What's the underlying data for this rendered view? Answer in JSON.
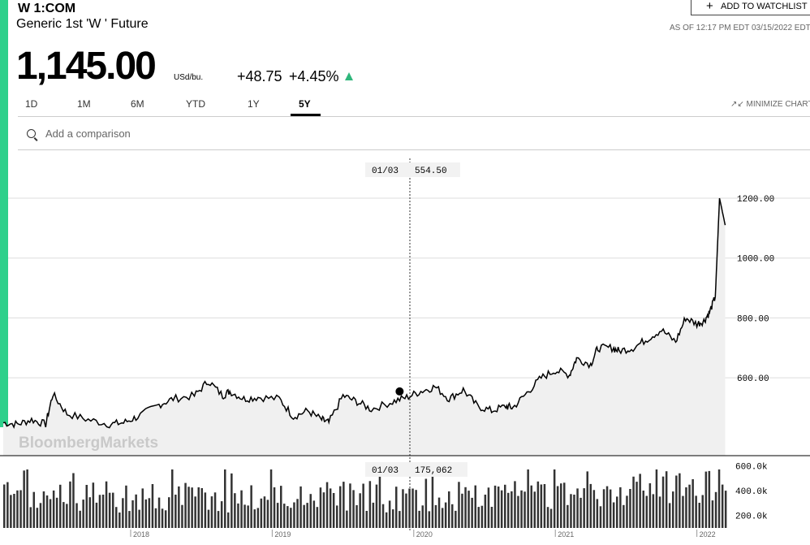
{
  "header": {
    "ticker": "W 1:COM",
    "name": "Generic 1st 'W ' Future",
    "price": "1,145.00",
    "unit": "USd/bu.",
    "change": "+48.75",
    "change_pct": "+4.45%",
    "direction_icon": "triangle-up-icon",
    "as_of": "AS OF 12:17 PM EDT 03/15/2022 EDT",
    "watchlist_label": "ADD TO WATCHLIST"
  },
  "tabs": [
    {
      "label": "1D"
    },
    {
      "label": "1M"
    },
    {
      "label": "6M"
    },
    {
      "label": "YTD"
    },
    {
      "label": "1Y"
    },
    {
      "label": "5Y",
      "active": true
    }
  ],
  "minimize_label": "MINIMIZE CHART",
  "search": {
    "placeholder": "Add a comparison"
  },
  "watermark": "BloombergMarkets",
  "colors": {
    "accent": "#2fd08b",
    "up": "#2fb67b",
    "area": "#f0f0f0",
    "line": "#000000"
  },
  "chart_data": {
    "type": "area",
    "title": "Generic 1st 'W ' Future — 5Y",
    "ylabel": "USd/bu.",
    "ylim": [
      340,
      1360
    ],
    "y_ticks": [
      600,
      800,
      1000,
      1200
    ],
    "y_tick_labels": [
      "600.00",
      "800.00",
      "1000.00",
      "1200.00"
    ],
    "x_labels": [
      "2018",
      "2019",
      "2020",
      "2021",
      "2022"
    ],
    "x_positions": [
      0.9,
      1.9,
      2.9,
      3.9,
      4.9
    ],
    "price_series": {
      "x": [
        0.0,
        0.1,
        0.2,
        0.3,
        0.35,
        0.45,
        0.6,
        0.75,
        0.85,
        0.95,
        1.1,
        1.2,
        1.35,
        1.45,
        1.55,
        1.6,
        1.7,
        1.8,
        1.95,
        2.05,
        2.15,
        2.25,
        2.3,
        2.4,
        2.5,
        2.6,
        2.75,
        2.85,
        2.95,
        3.05,
        3.15,
        3.25,
        3.35,
        3.45,
        3.55,
        3.6,
        3.7,
        3.8,
        3.9,
        4.0,
        4.05,
        4.15,
        4.2,
        4.3,
        4.35,
        4.45,
        4.55,
        4.65,
        4.75,
        4.82,
        4.9,
        4.95,
        4.99,
        5.03,
        5.06,
        5.1
      ],
      "values": [
        450,
        445,
        460,
        445,
        545,
        480,
        460,
        445,
        450,
        470,
        510,
        530,
        540,
        590,
        540,
        555,
        530,
        535,
        530,
        470,
        490,
        460,
        450,
        540,
        520,
        495,
        520,
        535,
        555,
        570,
        530,
        560,
        505,
        490,
        505,
        500,
        550,
        600,
        625,
        610,
        665,
        645,
        700,
        700,
        690,
        700,
        730,
        760,
        720,
        800,
        780,
        790,
        820,
        870,
        1200,
        1110
      ],
      "current_point": {
        "x": 2.8,
        "value": 554.5
      },
      "tooltip_date": "01/03",
      "tooltip_value": "554.50"
    },
    "volume_series": {
      "ylim": [
        100000,
        650000
      ],
      "y_ticks": [
        200000,
        400000,
        600000
      ],
      "y_tick_labels": [
        "200.0k",
        "400.0k",
        "600.0k"
      ],
      "tooltip_date": "01/03",
      "tooltip_value": "175,062",
      "bar_count": 220
    }
  }
}
